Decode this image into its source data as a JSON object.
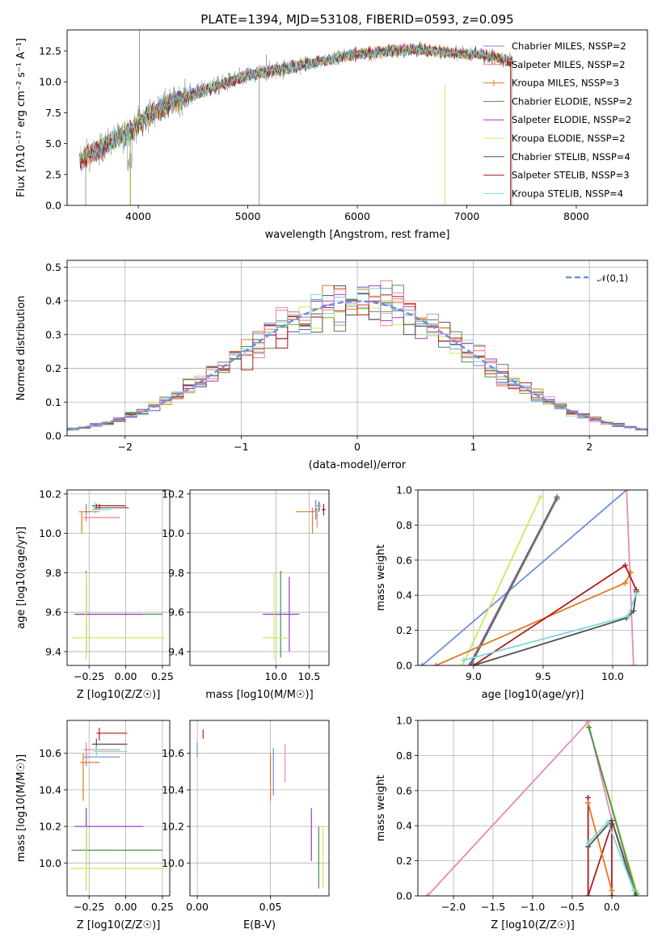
{
  "colors": {
    "Chabrier MILES": "#6a8fdc",
    "Salpeter MILES": "#e8837f",
    "Kroupa MILES": "#e07a22",
    "Chabrier ELODIE": "#4a8f4a",
    "Salpeter ELODIE": "#9b3bc0",
    "Kroupa ELODIE": "#cfe85a",
    "Chabrier STELIB": "#505050",
    "Salpeter STELIB": "#b01a1a",
    "Kroupa STELIB": "#7fd7d7",
    "pink": "#e58ab8",
    "data": "#808080",
    "grid": "#b0b0b0"
  },
  "chart_data": [
    {
      "type": "line",
      "title": "PLATE=1394, MJD=53108, FIBERID=0593, z=0.095",
      "xlabel": "wavelength [Angstrom, rest frame]",
      "ylabel": "Flux [fλ10⁻¹⁷ erg cm⁻² s⁻¹ A⁻¹]",
      "xlim": [
        3350,
        8650
      ],
      "ylim": [
        0,
        14.2
      ],
      "xticks": [
        "4000",
        "5000",
        "6000",
        "7000",
        "8000"
      ],
      "yticks": [
        "0.0",
        "2.5",
        "5.0",
        "7.5",
        "10.0",
        "12.5"
      ],
      "legend_placement": "upper right",
      "series": [
        {
          "name": "Chabrier MILES, N_SSP=2",
          "legend": "Chabrier MILES, NSSP=2"
        },
        {
          "name": "Salpeter MILES, N_SSP=2",
          "legend": "Salpeter MILES, NSSP=2"
        },
        {
          "name": "Kroupa MILES, N_SSP=3",
          "legend": "Kroupa MILES, NSSP=3"
        },
        {
          "name": "Chabrier ELODIE, N_SSP=2",
          "legend": "Chabrier ELODIE, NSSP=2"
        },
        {
          "name": "Salpeter ELODIE, N_SSP=2",
          "legend": "Salpeter ELODIE, NSSP=2"
        },
        {
          "name": "Kroupa ELODIE, N_SSP=2",
          "legend": "Kroupa ELODIE, NSSP=2"
        },
        {
          "name": "Chabrier STELIB, N_SSP=4",
          "legend": "Chabrier STELIB, NSSP=4"
        },
        {
          "name": "Salpeter STELIB, N_SSP=3",
          "legend": "Salpeter STELIB, NSSP=3"
        },
        {
          "name": "Kroupa STELIB, N_SSP=4",
          "legend": "Kroupa STELIB, NSSP=4"
        }
      ],
      "continuum": {
        "x": [
          3450,
          3550,
          3650,
          3750,
          3850,
          3950,
          4050,
          4150,
          4300,
          4500,
          4700,
          4900,
          5100,
          5300,
          5500,
          5700,
          5900,
          6100,
          6300,
          6500,
          6700,
          6900,
          7100,
          7300,
          7420
        ],
        "y": [
          3.5,
          4.2,
          4.5,
          5.2,
          5.6,
          6.3,
          7.0,
          7.6,
          8.3,
          9.0,
          9.6,
          10.2,
          10.7,
          11.0,
          11.4,
          11.7,
          12.1,
          12.3,
          12.5,
          12.6,
          12.5,
          12.3,
          12.2,
          11.9,
          11.6
        ]
      }
    },
    {
      "type": "line",
      "xlabel": "(data-model)/error",
      "ylabel": "Normed distribution",
      "xlim": [
        -2.5,
        2.5
      ],
      "ylim": [
        0,
        0.52
      ],
      "xticks": [
        "−2",
        "−1",
        "0",
        "1",
        "2"
      ],
      "yticks": [
        "0.0",
        "0.1",
        "0.2",
        "0.3",
        "0.4",
        "0.5"
      ],
      "legend_placement": "upper right",
      "reference": {
        "name": "𝒩(0,1)",
        "mean": 0,
        "sigma": 1
      }
    },
    {
      "type": "scatter",
      "xlabel": "Z [log10(Z/Z☉)]",
      "ylabel": "age  [log10(age/yr)]",
      "xlim": [
        -0.4,
        0.3
      ],
      "ylim": [
        9.33,
        10.22
      ],
      "xticks": [
        "−0.25",
        "0.00",
        "0.25"
      ],
      "yticks": [
        "9.4",
        "9.6",
        "9.8",
        "10.0",
        "10.2"
      ]
    },
    {
      "type": "scatter",
      "xlabel": "mass [log10(M/M☉)]",
      "xlim": [
        8.7,
        10.8
      ],
      "ylim": [
        9.33,
        10.22
      ],
      "xticks": [
        "10.0",
        "10.5"
      ],
      "yticks": [
        "9.4",
        "9.6",
        "9.8",
        "10.0",
        "10.2"
      ]
    },
    {
      "type": "line",
      "xlabel": "age  [log10(age/yr)]",
      "ylabel": "mass weight",
      "xlim": [
        8.6,
        10.25
      ],
      "ylim": [
        0,
        1
      ],
      "xticks": [
        "9.0",
        "9.5",
        "10.0"
      ],
      "yticks": [
        "0.0",
        "0.2",
        "0.4",
        "0.6",
        "0.8",
        "1.0"
      ]
    },
    {
      "type": "scatter",
      "xlabel": "Z [log10(Z/Z☉)]",
      "ylabel": "mass [log10(M/M☉)]",
      "xlim": [
        -0.4,
        0.3
      ],
      "ylim": [
        9.82,
        10.78
      ],
      "xticks": [
        "−0.25",
        "0.00",
        "0.25"
      ],
      "yticks": [
        "10.0",
        "10.2",
        "10.4",
        "10.6"
      ]
    },
    {
      "type": "scatter",
      "xlabel": "E(B-V)",
      "xlim": [
        -0.005,
        0.09
      ],
      "ylim": [
        9.82,
        10.78
      ],
      "xticks": [
        "0.00",
        "0.05"
      ],
      "yticks": [
        "10.0",
        "10.2",
        "10.4",
        "10.6"
      ]
    },
    {
      "type": "line",
      "xlabel": "Z [log10(Z/Z☉)]",
      "ylabel": "mass weight",
      "xlim": [
        -2.45,
        0.45
      ],
      "ylim": [
        0,
        1
      ],
      "xticks": [
        "−2.0",
        "−1.5",
        "−1.0",
        "−0.5",
        "0.0"
      ],
      "yticks": [
        "0.0",
        "0.2",
        "0.4",
        "0.6",
        "0.8",
        "1.0"
      ]
    }
  ],
  "panel_c_points": [
    {
      "c": "Chabrier MILES",
      "x": -0.27,
      "y": 10.11,
      "ex": [
        -0.28,
        -0.24
      ],
      "ey": [
        10.09,
        10.15
      ]
    },
    {
      "c": "Salpeter MILES",
      "x": -0.27,
      "y": 10.08,
      "ex": [
        -0.29,
        -0.04
      ],
      "ey": [
        10.06,
        10.1
      ]
    },
    {
      "c": "Kroupa MILES",
      "x": -0.3,
      "y": 10.11,
      "ex": [
        -0.32,
        -0.18
      ],
      "ey": [
        10.0,
        10.11
      ]
    },
    {
      "c": "Chabrier ELODIE",
      "x": -0.27,
      "y": 9.59,
      "ex": [
        -0.35,
        0.25
      ],
      "ey": [
        9.37,
        9.81
      ]
    },
    {
      "c": "Salpeter ELODIE",
      "x": -0.27,
      "y": 9.59,
      "ex": [
        -0.35,
        0.12
      ],
      "ey": [
        9.4,
        9.78
      ]
    },
    {
      "c": "Kroupa ELODIE",
      "x": -0.27,
      "y": 9.47,
      "ex": [
        -0.37,
        0.27
      ],
      "ey": [
        9.36,
        9.8
      ]
    },
    {
      "c": "Chabrier STELIB",
      "x": -0.2,
      "y": 10.13,
      "ex": [
        -0.22,
        0.02
      ],
      "ey": [
        10.12,
        10.15
      ]
    },
    {
      "c": "Salpeter STELIB",
      "x": -0.18,
      "y": 10.14,
      "ex": [
        -0.23,
        0.0
      ],
      "ey": [
        10.12,
        10.15
      ]
    },
    {
      "c": "Kroupa STELIB",
      "x": -0.21,
      "y": 10.12,
      "ex": [
        -0.23,
        -0.1
      ],
      "ey": [
        10.1,
        10.16
      ]
    }
  ],
  "panel_d_points": [
    {
      "c": "Chabrier MILES",
      "x": 10.6,
      "y": 10.12,
      "ex": [
        10.58,
        10.63
      ],
      "ey": [
        10.07,
        10.17
      ]
    },
    {
      "c": "Salpeter MILES",
      "x": 10.62,
      "y": 10.09,
      "ex": [
        10.61,
        10.64
      ],
      "ey": [
        10.03,
        10.13
      ]
    },
    {
      "c": "Kroupa MILES",
      "x": 10.55,
      "y": 10.11,
      "ex": [
        10.3,
        10.6
      ],
      "ey": [
        10.0,
        10.13
      ]
    },
    {
      "c": "Chabrier ELODIE",
      "x": 10.07,
      "y": 9.59,
      "ex": [
        9.85,
        10.3
      ],
      "ey": [
        9.37,
        9.81
      ]
    },
    {
      "c": "Salpeter ELODIE",
      "x": 10.2,
      "y": 9.59,
      "ex": [
        9.8,
        10.35
      ],
      "ey": [
        9.4,
        9.78
      ]
    },
    {
      "c": "Kroupa ELODIE",
      "x": 9.97,
      "y": 9.47,
      "ex": [
        9.8,
        10.2
      ],
      "ey": [
        9.36,
        9.8
      ]
    },
    {
      "c": "Chabrier STELIB",
      "x": 10.65,
      "y": 10.14,
      "ex": [
        10.62,
        10.68
      ],
      "ey": [
        10.11,
        10.16
      ]
    },
    {
      "c": "Salpeter STELIB",
      "x": 10.72,
      "y": 10.12,
      "ex": [
        10.69,
        10.75
      ],
      "ey": [
        10.09,
        10.15
      ]
    },
    {
      "c": "Kroupa STELIB",
      "x": 10.66,
      "y": 10.14,
      "ex": [
        10.64,
        10.69
      ],
      "ey": [
        10.12,
        10.16
      ]
    }
  ],
  "panel_f_points": [
    {
      "c": "Chabrier MILES",
      "x": -0.27,
      "y": 10.58,
      "ex": [
        -0.29,
        -0.04
      ],
      "ey": [
        10.53,
        10.63
      ]
    },
    {
      "c": "Salpeter MILES",
      "x": -0.27,
      "y": 10.62,
      "ex": [
        -0.29,
        -0.04
      ],
      "ey": [
        10.56,
        10.66
      ]
    },
    {
      "c": "Kroupa MILES",
      "x": -0.29,
      "y": 10.55,
      "ex": [
        -0.31,
        -0.18
      ],
      "ey": [
        10.34,
        10.6
      ]
    },
    {
      "c": "Chabrier ELODIE",
      "x": -0.27,
      "y": 10.07,
      "ex": [
        -0.37,
        0.25
      ],
      "ey": [
        9.85,
        10.3
      ]
    },
    {
      "c": "Salpeter ELODIE",
      "x": -0.27,
      "y": 10.2,
      "ex": [
        -0.35,
        0.12
      ],
      "ey": [
        9.99,
        10.3
      ]
    },
    {
      "c": "Kroupa ELODIE",
      "x": -0.27,
      "y": 9.97,
      "ex": [
        -0.38,
        0.27
      ],
      "ey": [
        9.85,
        10.2
      ]
    },
    {
      "c": "Chabrier STELIB",
      "x": -0.2,
      "y": 10.65,
      "ex": [
        -0.23,
        0.01
      ],
      "ey": [
        10.62,
        10.68
      ]
    },
    {
      "c": "Salpeter STELIB",
      "x": -0.18,
      "y": 10.71,
      "ex": [
        -0.2,
        0.01
      ],
      "ey": [
        10.67,
        10.74
      ]
    },
    {
      "c": "Kroupa STELIB",
      "x": -0.2,
      "y": 10.61,
      "ex": [
        -0.22,
        0.01
      ],
      "ey": [
        10.58,
        10.64
      ]
    }
  ],
  "panel_g_points": [
    {
      "c": "Chabrier MILES",
      "x": 0.0,
      "y": 10.62,
      "ey": [
        10.58,
        10.66
      ]
    },
    {
      "c": "Kroupa MILES",
      "x": 0.05,
      "y": 10.47,
      "ey": [
        10.34,
        10.6
      ]
    },
    {
      "c": "Chabrier MILES",
      "x": 0.052,
      "y": 10.5,
      "ey": [
        10.37,
        10.63
      ]
    },
    {
      "c": "pink",
      "x": 0.06,
      "y": 10.55,
      "ey": [
        10.44,
        10.65
      ]
    },
    {
      "c": "Salpeter ELODIE",
      "x": 0.078,
      "y": 10.1,
      "ey": [
        10.01,
        10.3
      ]
    },
    {
      "c": "Chabrier ELODIE",
      "x": 0.083,
      "y": 10.07,
      "ey": [
        9.86,
        10.2
      ]
    },
    {
      "c": "Kroupa ELODIE",
      "x": 0.086,
      "y": 10.05,
      "ey": [
        9.86,
        10.2
      ]
    },
    {
      "c": "Salpeter STELIB",
      "x": 0.004,
      "y": 10.71,
      "ey": [
        10.68,
        10.73
      ]
    }
  ],
  "panel_e_lines": [
    {
      "c": "Chabrier MILES",
      "pts": [
        [
          8.63,
          0.0
        ],
        [
          10.1,
          1.0
        ]
      ]
    },
    {
      "c": "pink",
      "pts": [
        [
          10.1,
          1.0
        ],
        [
          10.15,
          0.0
        ]
      ]
    },
    {
      "c": "Kroupa ELODIE",
      "pts": [
        [
          8.92,
          0.0
        ],
        [
          9.48,
          0.96
        ]
      ]
    },
    {
      "c": "Salpeter ELODIE",
      "pts": [
        [
          8.97,
          0.0
        ],
        [
          9.6,
          0.96
        ]
      ]
    },
    {
      "c": "Chabrier ELODIE",
      "pts": [
        [
          8.98,
          0.0
        ],
        [
          9.6,
          0.95
        ]
      ]
    },
    {
      "c": "Kroupa MILES",
      "pts": [
        [
          8.73,
          0.0
        ],
        [
          10.09,
          0.47
        ],
        [
          10.13,
          0.53
        ]
      ]
    },
    {
      "c": "Salpeter STELIB",
      "pts": [
        [
          9.0,
          0.0
        ],
        [
          10.09,
          0.57
        ],
        [
          10.17,
          0.43
        ]
      ]
    },
    {
      "c": "Chabrier STELIB",
      "pts": [
        [
          9.0,
          0.0
        ],
        [
          10.1,
          0.27
        ],
        [
          10.15,
          0.31
        ],
        [
          10.17,
          0.42
        ]
      ]
    },
    {
      "c": "Kroupa STELIB",
      "pts": [
        [
          8.93,
          0.03
        ],
        [
          10.11,
          0.28
        ],
        [
          10.17,
          0.41
        ]
      ]
    }
  ],
  "panel_h_lines": [
    {
      "c": "pink",
      "pts": [
        [
          -2.33,
          0.0
        ],
        [
          -0.3,
          0.99
        ],
        [
          0.0,
          0.43
        ],
        [
          0.3,
          0.03
        ]
      ]
    },
    {
      "c": "Kroupa ELODIE",
      "pts": [
        [
          -0.3,
          0.97
        ],
        [
          0.32,
          0.02
        ]
      ]
    },
    {
      "c": "Chabrier ELODIE",
      "pts": [
        [
          -0.29,
          0.96
        ],
        [
          0.31,
          0.01
        ]
      ]
    },
    {
      "c": "Salpeter STELIB",
      "pts": [
        [
          -0.3,
          0.56
        ],
        [
          -0.3,
          0.0
        ],
        [
          0.0,
          0.41
        ],
        [
          0.0,
          0.0
        ]
      ]
    },
    {
      "c": "Kroupa MILES",
      "pts": [
        [
          -0.3,
          0.53
        ],
        [
          0.0,
          0.03
        ]
      ]
    },
    {
      "c": "Chabrier STELIB",
      "pts": [
        [
          -0.3,
          0.28
        ],
        [
          0.0,
          0.43
        ],
        [
          0.3,
          0.0
        ]
      ]
    },
    {
      "c": "Kroupa STELIB",
      "pts": [
        [
          -0.3,
          0.3
        ],
        [
          -0.05,
          0.42
        ],
        [
          0.28,
          0.03
        ]
      ]
    }
  ]
}
